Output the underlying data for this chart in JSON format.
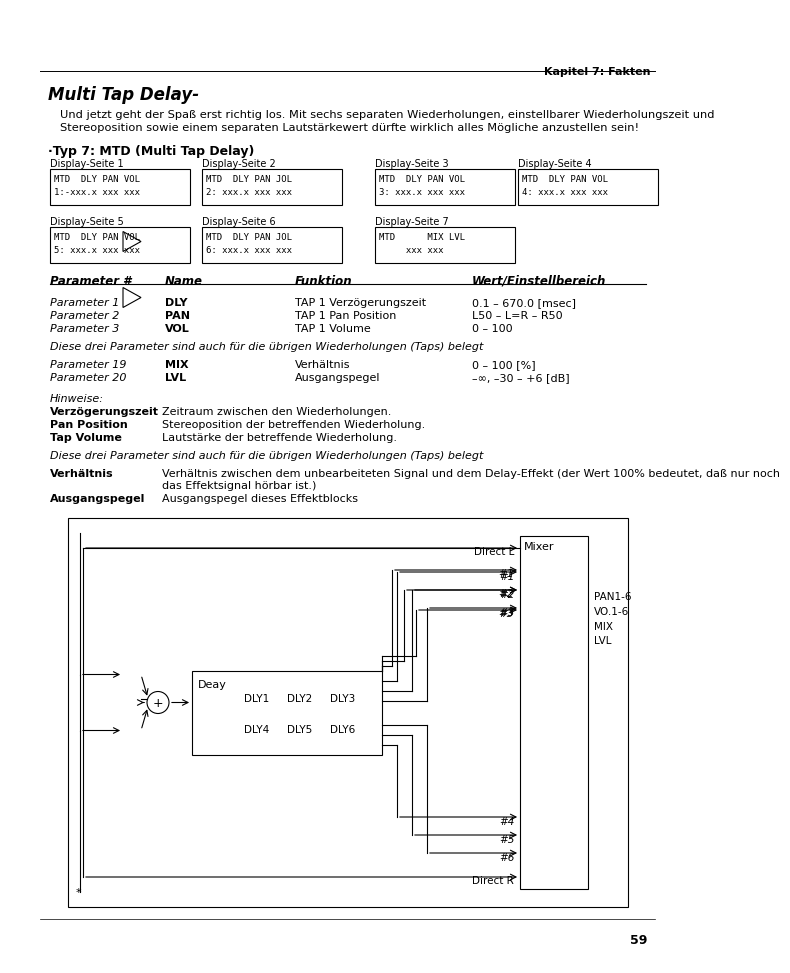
{
  "page_header": "Kapitel 7: Fakten",
  "title": "Multi Tap Delay-",
  "intro_text": "Und jetzt geht der Spaß erst richtig los. Mit sechs separaten Wiederholungen, einstellbarer Wiederholungszeit und\nStereoposition sowie einem separaten Lautstärkewert dürfte wirklich alles Mögliche anzustellen sein!",
  "typ_header": "·Typ 7: MTD (Multi Tap Delay)",
  "display_labels_row1": [
    "Display-Seite 1",
    "Display-Seite 2",
    "Display-Seite 3",
    "Display-Seite 4"
  ],
  "display_contents_row1": [
    "MTD  DLY PAN VOL\n1:-xxx.x xxx xxx",
    "MTD  DLY PAN JOL\n2: xxx.x xxx xxx",
    "MTD  DLY PAN VOL\n3: xxx.x xxx xxx",
    "MTD  DLY PAN VOL\n4: xxx.x xxx xxx"
  ],
  "display_labels_row2": [
    "Display-Seite 5",
    "Display-Seite 6",
    "Display-Seite 7"
  ],
  "display_contents_row2": [
    "MTD  DLY PAN VOL\n5: xxx.x xxx xxx",
    "MTD  DLY PAN JOL\n6: xxx.x xxx xxx",
    "MTD      MIX LVL\n     xxx xxx"
  ],
  "table_header": [
    "Parameter #",
    "Name",
    "Funktion",
    "Wert/Einstellbereich"
  ],
  "params": [
    [
      "Parameter 1",
      "DLY",
      "TAP 1 Verzögerungszeit",
      "0.1 – 670.0 [msec]"
    ],
    [
      "Parameter 2",
      "PAN",
      "TAP 1 Pan Position",
      "L50 – L=R – R50"
    ],
    [
      "Parameter 3",
      "VOL",
      "TAP 1 Volume",
      "0 – 100"
    ]
  ],
  "note_italic1": "Diese drei Parameter sind auch für die übrigen Wiederholungen (Taps) belegt",
  "params2": [
    [
      "Parameter 19",
      "MIX",
      "Verhältnis",
      "0 – 100 [%]"
    ],
    [
      "Parameter 20",
      "LVL",
      "Ausgangspegel",
      "–∞, –30 – +6 [dB]"
    ]
  ],
  "hinweise_title": "Hinweise:",
  "hinweise": [
    [
      "Verzögerungszeit",
      "Zeitraum zwischen den Wiederholungen."
    ],
    [
      "Pan Position",
      "Stereoposition der betreffenden Wiederholung."
    ],
    [
      "Tap Volume",
      "Lautstärke der betreffende Wiederholung."
    ]
  ],
  "note_italic2": "Diese drei Parameter sind auch für die übrigen Wiederholungen (Taps) belegt",
  "definitions": [
    [
      "Verhältnis",
      "Verhältnis zwischen dem unbearbeiteten Signal und dem Delay-Effekt (der Wert 100% bedeutet, daß nur noch\ndas Effektsignal hörbar ist.)"
    ],
    [
      "Ausgangspegel",
      "Ausgangspegel dieses Effektblocks"
    ]
  ],
  "page_number": "59",
  "bg_color": "#ffffff",
  "text_color": "#000000"
}
